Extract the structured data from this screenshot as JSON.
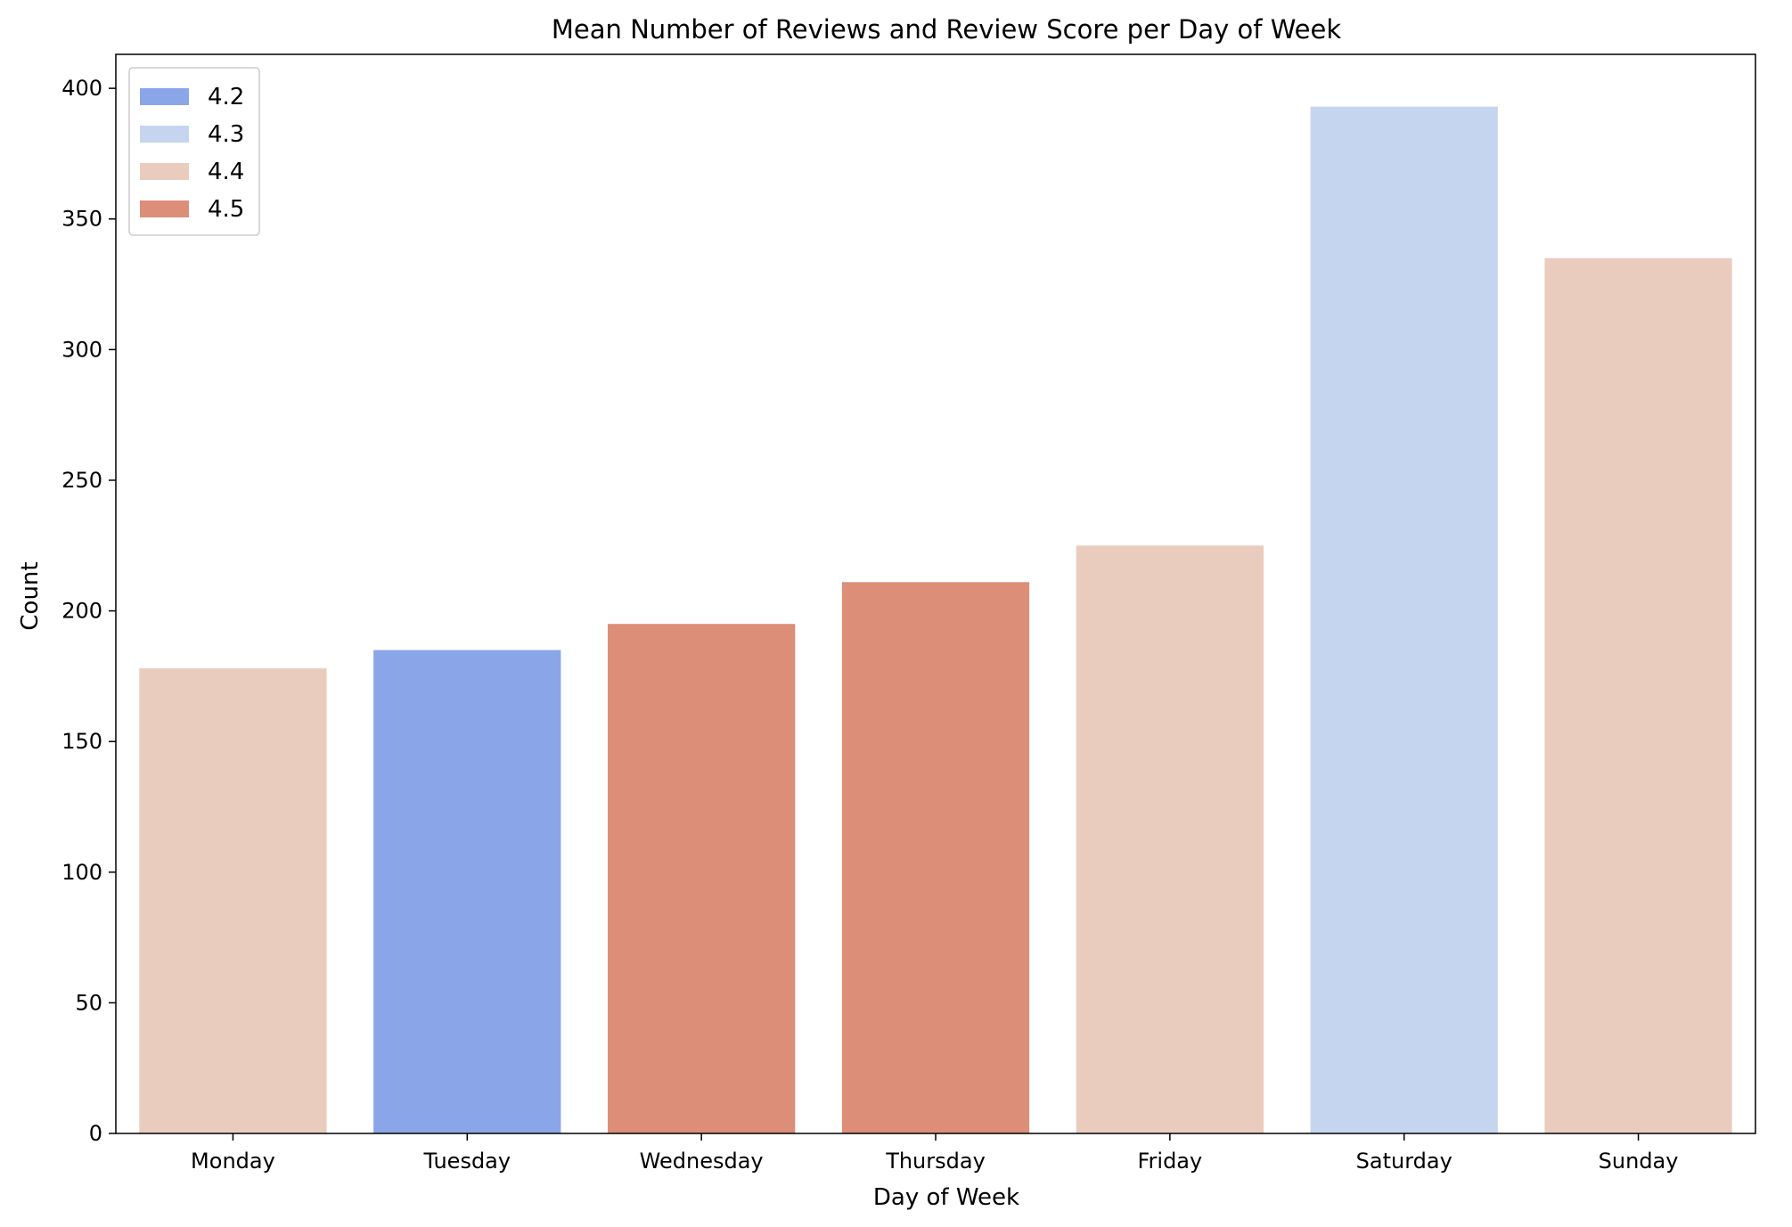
{
  "chart_data": {
    "type": "bar",
    "title": "Mean Number of Reviews and Review Score per Day of Week",
    "xlabel": "Day of Week",
    "ylabel": "Count",
    "ylim": [
      0,
      413
    ],
    "yticks": [
      0,
      50,
      100,
      150,
      200,
      250,
      300,
      350,
      400
    ],
    "grid": false,
    "legend_position": "top-left",
    "categories": [
      "Monday",
      "Tuesday",
      "Wednesday",
      "Thursday",
      "Friday",
      "Saturday",
      "Sunday"
    ],
    "values": [
      178,
      185,
      195,
      211,
      225,
      393,
      335
    ],
    "hue_values": [
      "4.4",
      "4.2",
      "4.5",
      "4.5",
      "4.4",
      "4.3",
      "4.4"
    ],
    "legend": [
      {
        "label": "4.2",
        "color": "#8aa6e8"
      },
      {
        "label": "4.3",
        "color": "#c6d5ef"
      },
      {
        "label": "4.4",
        "color": "#eaccbe"
      },
      {
        "label": "4.5",
        "color": "#dc8e78"
      }
    ]
  }
}
